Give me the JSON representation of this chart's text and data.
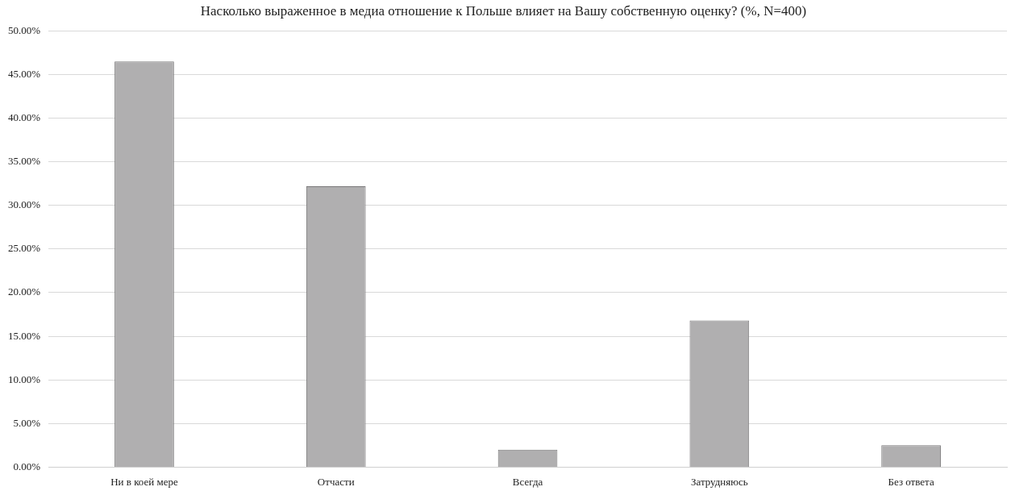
{
  "chart_data": {
    "type": "bar",
    "title": "Насколько выраженное в медиа отношение к Польше влияет на Вашу собственную оценку? (%, N=400)",
    "categories": [
      "Ни в коей мере",
      "Отчасти",
      "Всегда",
      "Затрудняюсь",
      "Без ответа"
    ],
    "values": [
      46.5,
      32.2,
      2.0,
      16.8,
      2.5
    ],
    "color": "#b0afb0",
    "ylim": [
      0,
      50
    ],
    "yticks": [
      {
        "value": 0,
        "label": "0.00%"
      },
      {
        "value": 5,
        "label": "5.00%"
      },
      {
        "value": 10,
        "label": "10.00%"
      },
      {
        "value": 15,
        "label": "15.00%"
      },
      {
        "value": 20,
        "label": "20.00%"
      },
      {
        "value": 25,
        "label": "25.00%"
      },
      {
        "value": 30,
        "label": "30.00%"
      },
      {
        "value": 35,
        "label": "35.00%"
      },
      {
        "value": 40,
        "label": "40.00%"
      },
      {
        "value": 45,
        "label": "45.00%"
      },
      {
        "value": 50,
        "label": "50.00%"
      }
    ],
    "grid": "y",
    "legend": false
  }
}
